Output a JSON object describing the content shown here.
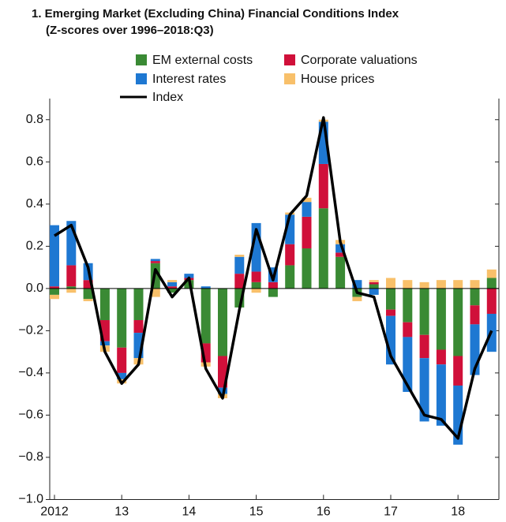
{
  "chart_data": {
    "type": "bar",
    "title": "1. Emerging Market (Excluding China) Financial Conditions Index",
    "subtitle": "(Z-scores over 1996–2018:Q3)",
    "categories": [
      "2012",
      null,
      null,
      null,
      "13",
      null,
      null,
      null,
      "14",
      null,
      null,
      null,
      "15",
      null,
      null,
      null,
      "16",
      null,
      null,
      null,
      "17",
      null,
      null,
      null,
      "18",
      null,
      null
    ],
    "series": [
      {
        "name": "EM external costs",
        "color": "#3a8a34",
        "values": [
          -0.03,
          0.01,
          -0.05,
          -0.15,
          -0.28,
          -0.15,
          0.12,
          -0.02,
          0.04,
          -0.26,
          -0.32,
          -0.09,
          0.03,
          -0.04,
          0.11,
          0.19,
          0.38,
          0.15,
          -0.04,
          0.02,
          -0.1,
          -0.16,
          -0.22,
          -0.29,
          -0.32,
          -0.08,
          0.05
        ]
      },
      {
        "name": "Corporate valuations",
        "color": "#d0103a",
        "values": [
          0.01,
          0.1,
          0.04,
          -0.1,
          -0.12,
          -0.06,
          0.01,
          0.01,
          0.01,
          -0.09,
          -0.15,
          0.07,
          0.05,
          0.03,
          0.1,
          0.15,
          0.21,
          0.02,
          0.0,
          0.01,
          -0.03,
          -0.07,
          -0.11,
          -0.07,
          -0.14,
          -0.09,
          -0.12
        ]
      },
      {
        "name": "Interest rates",
        "color": "#1e78d2",
        "values": [
          0.29,
          0.21,
          0.08,
          -0.02,
          -0.03,
          -0.12,
          0.01,
          0.02,
          0.02,
          0.01,
          -0.03,
          0.08,
          0.23,
          0.07,
          0.14,
          0.07,
          0.2,
          0.04,
          0.04,
          -0.03,
          -0.23,
          -0.26,
          -0.3,
          -0.29,
          -0.28,
          -0.24,
          -0.18
        ]
      },
      {
        "name": "House prices",
        "color": "#f8c06a",
        "values": [
          -0.02,
          -0.02,
          -0.01,
          -0.03,
          -0.02,
          -0.03,
          -0.04,
          0.01,
          0.0,
          -0.02,
          -0.02,
          0.01,
          -0.02,
          0.0,
          0.01,
          0.02,
          0.01,
          0.02,
          -0.02,
          0.01,
          0.05,
          0.04,
          0.03,
          0.04,
          0.04,
          0.04,
          0.04
        ]
      },
      {
        "name": "Index",
        "color": "#000000",
        "type": "line",
        "values": [
          0.25,
          0.3,
          0.1,
          -0.3,
          -0.45,
          -0.36,
          0.09,
          -0.04,
          0.05,
          -0.38,
          -0.52,
          -0.1,
          0.28,
          0.04,
          0.35,
          0.44,
          0.81,
          0.22,
          -0.02,
          -0.04,
          -0.32,
          -0.46,
          -0.6,
          -0.62,
          -0.71,
          -0.38,
          -0.2
        ]
      }
    ],
    "ylim": [
      -1.0,
      0.9
    ],
    "yticks": [
      0.8,
      0.6,
      0.4,
      0.2,
      {
        "value": 0,
        "label": "0.0"
      },
      {
        "value": -0.2,
        "label": "−0.2"
      },
      {
        "value": -0.4,
        "label": "−0.4"
      },
      {
        "value": -0.6,
        "label": "−0.6"
      },
      {
        "value": -0.8,
        "label": "−0.8"
      },
      {
        "value": -1.0,
        "label": "−1.0"
      }
    ]
  }
}
